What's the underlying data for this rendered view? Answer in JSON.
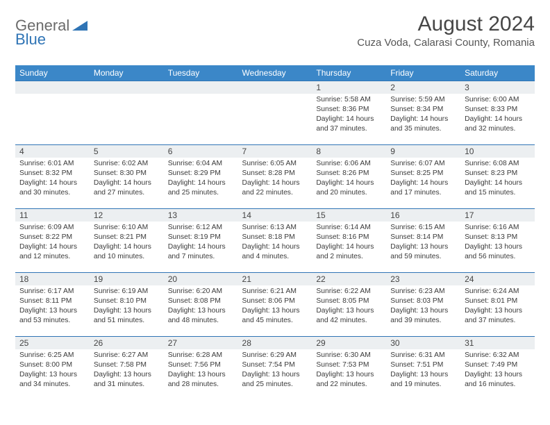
{
  "logo": {
    "part1": "General",
    "part2": "Blue"
  },
  "title": "August 2024",
  "location": "Cuza Voda, Calarasi County, Romania",
  "colors": {
    "header_bg": "#3b87c8",
    "header_text": "#ffffff",
    "row_divider": "#2f74b5",
    "daynum_bg": "#eceff1",
    "text": "#3a3a3a",
    "logo_gray": "#6b6b6b",
    "logo_blue": "#2f74b5"
  },
  "daysOfWeek": [
    "Sunday",
    "Monday",
    "Tuesday",
    "Wednesday",
    "Thursday",
    "Friday",
    "Saturday"
  ],
  "weeks": [
    [
      null,
      null,
      null,
      null,
      {
        "n": "1",
        "sunrise": "5:58 AM",
        "sunset": "8:36 PM",
        "daylight": "14 hours and 37 minutes."
      },
      {
        "n": "2",
        "sunrise": "5:59 AM",
        "sunset": "8:34 PM",
        "daylight": "14 hours and 35 minutes."
      },
      {
        "n": "3",
        "sunrise": "6:00 AM",
        "sunset": "8:33 PM",
        "daylight": "14 hours and 32 minutes."
      }
    ],
    [
      {
        "n": "4",
        "sunrise": "6:01 AM",
        "sunset": "8:32 PM",
        "daylight": "14 hours and 30 minutes."
      },
      {
        "n": "5",
        "sunrise": "6:02 AM",
        "sunset": "8:30 PM",
        "daylight": "14 hours and 27 minutes."
      },
      {
        "n": "6",
        "sunrise": "6:04 AM",
        "sunset": "8:29 PM",
        "daylight": "14 hours and 25 minutes."
      },
      {
        "n": "7",
        "sunrise": "6:05 AM",
        "sunset": "8:28 PM",
        "daylight": "14 hours and 22 minutes."
      },
      {
        "n": "8",
        "sunrise": "6:06 AM",
        "sunset": "8:26 PM",
        "daylight": "14 hours and 20 minutes."
      },
      {
        "n": "9",
        "sunrise": "6:07 AM",
        "sunset": "8:25 PM",
        "daylight": "14 hours and 17 minutes."
      },
      {
        "n": "10",
        "sunrise": "6:08 AM",
        "sunset": "8:23 PM",
        "daylight": "14 hours and 15 minutes."
      }
    ],
    [
      {
        "n": "11",
        "sunrise": "6:09 AM",
        "sunset": "8:22 PM",
        "daylight": "14 hours and 12 minutes."
      },
      {
        "n": "12",
        "sunrise": "6:10 AM",
        "sunset": "8:21 PM",
        "daylight": "14 hours and 10 minutes."
      },
      {
        "n": "13",
        "sunrise": "6:12 AM",
        "sunset": "8:19 PM",
        "daylight": "14 hours and 7 minutes."
      },
      {
        "n": "14",
        "sunrise": "6:13 AM",
        "sunset": "8:18 PM",
        "daylight": "14 hours and 4 minutes."
      },
      {
        "n": "15",
        "sunrise": "6:14 AM",
        "sunset": "8:16 PM",
        "daylight": "14 hours and 2 minutes."
      },
      {
        "n": "16",
        "sunrise": "6:15 AM",
        "sunset": "8:14 PM",
        "daylight": "13 hours and 59 minutes."
      },
      {
        "n": "17",
        "sunrise": "6:16 AM",
        "sunset": "8:13 PM",
        "daylight": "13 hours and 56 minutes."
      }
    ],
    [
      {
        "n": "18",
        "sunrise": "6:17 AM",
        "sunset": "8:11 PM",
        "daylight": "13 hours and 53 minutes."
      },
      {
        "n": "19",
        "sunrise": "6:19 AM",
        "sunset": "8:10 PM",
        "daylight": "13 hours and 51 minutes."
      },
      {
        "n": "20",
        "sunrise": "6:20 AM",
        "sunset": "8:08 PM",
        "daylight": "13 hours and 48 minutes."
      },
      {
        "n": "21",
        "sunrise": "6:21 AM",
        "sunset": "8:06 PM",
        "daylight": "13 hours and 45 minutes."
      },
      {
        "n": "22",
        "sunrise": "6:22 AM",
        "sunset": "8:05 PM",
        "daylight": "13 hours and 42 minutes."
      },
      {
        "n": "23",
        "sunrise": "6:23 AM",
        "sunset": "8:03 PM",
        "daylight": "13 hours and 39 minutes."
      },
      {
        "n": "24",
        "sunrise": "6:24 AM",
        "sunset": "8:01 PM",
        "daylight": "13 hours and 37 minutes."
      }
    ],
    [
      {
        "n": "25",
        "sunrise": "6:25 AM",
        "sunset": "8:00 PM",
        "daylight": "13 hours and 34 minutes."
      },
      {
        "n": "26",
        "sunrise": "6:27 AM",
        "sunset": "7:58 PM",
        "daylight": "13 hours and 31 minutes."
      },
      {
        "n": "27",
        "sunrise": "6:28 AM",
        "sunset": "7:56 PM",
        "daylight": "13 hours and 28 minutes."
      },
      {
        "n": "28",
        "sunrise": "6:29 AM",
        "sunset": "7:54 PM",
        "daylight": "13 hours and 25 minutes."
      },
      {
        "n": "29",
        "sunrise": "6:30 AM",
        "sunset": "7:53 PM",
        "daylight": "13 hours and 22 minutes."
      },
      {
        "n": "30",
        "sunrise": "6:31 AM",
        "sunset": "7:51 PM",
        "daylight": "13 hours and 19 minutes."
      },
      {
        "n": "31",
        "sunrise": "6:32 AM",
        "sunset": "7:49 PM",
        "daylight": "13 hours and 16 minutes."
      }
    ]
  ],
  "labels": {
    "sunrise": "Sunrise: ",
    "sunset": "Sunset: ",
    "daylight": "Daylight: "
  }
}
